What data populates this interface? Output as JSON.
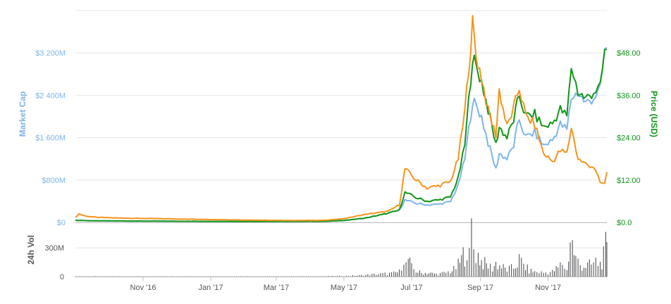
{
  "chart_data": {
    "type": "line",
    "x_axis": {
      "range": [
        "2016-09-01",
        "2017-12-24"
      ],
      "ticks": [
        {
          "date": "2016-11-01",
          "label": "Nov '16"
        },
        {
          "date": "2017-01-01",
          "label": "Jan '17"
        },
        {
          "date": "2017-03-01",
          "label": "Mar '17"
        },
        {
          "date": "2017-05-01",
          "label": "May '17"
        },
        {
          "date": "2017-07-01",
          "label": "Jul '17"
        },
        {
          "date": "2017-09-01",
          "label": "Sep '17"
        },
        {
          "date": "2017-11-01",
          "label": "Nov '17"
        }
      ]
    },
    "y_left": {
      "title": "Market Cap",
      "range": [
        0,
        4000
      ],
      "ticks": [
        {
          "value": 0,
          "label": "$0"
        },
        {
          "value": 800,
          "label": "$800M"
        },
        {
          "value": 1600,
          "label": "$1 600M"
        },
        {
          "value": 2400,
          "label": "$2 400M"
        },
        {
          "value": 3200,
          "label": "$3 200M"
        }
      ]
    },
    "y_right": {
      "title": "Price (USD)",
      "range": [
        0,
        60
      ],
      "ticks": [
        {
          "value": 0,
          "label": "$0.0"
        },
        {
          "value": 12,
          "label": "$12.00"
        },
        {
          "value": 24,
          "label": "$24.00"
        },
        {
          "value": 36,
          "label": "$36.00"
        },
        {
          "value": 48,
          "label": "$48.00"
        }
      ]
    },
    "volume_axis": {
      "title": "24h Vol",
      "range": [
        0,
        500
      ],
      "ticks": [
        {
          "value": 0,
          "label": "0"
        },
        {
          "value": 300,
          "label": "300M"
        }
      ]
    },
    "colors": {
      "market_cap": "#7cb5ec",
      "price_usd": "#109618",
      "price_btc": "#f7931a",
      "volume": "#434348"
    },
    "grid": true,
    "legend": "none",
    "series": [
      {
        "key": "market_cap",
        "axis": "left",
        "points": [
          [
            "2016-09-01",
            40
          ],
          [
            "2016-09-15",
            30
          ],
          [
            "2016-10-15",
            25
          ],
          [
            "2016-11-15",
            22
          ],
          [
            "2016-12-15",
            20
          ],
          [
            "2017-01-15",
            18
          ],
          [
            "2017-02-15",
            17
          ],
          [
            "2017-03-15",
            18
          ],
          [
            "2017-04-15",
            20
          ],
          [
            "2017-05-01",
            35
          ],
          [
            "2017-05-20",
            80
          ],
          [
            "2017-06-10",
            170
          ],
          [
            "2017-06-20",
            230
          ],
          [
            "2017-06-25",
            420
          ],
          [
            "2017-07-05",
            360
          ],
          [
            "2017-07-15",
            330
          ],
          [
            "2017-07-25",
            340
          ],
          [
            "2017-08-05",
            390
          ],
          [
            "2017-08-12",
            700
          ],
          [
            "2017-08-18",
            1200
          ],
          [
            "2017-08-25",
            2300
          ],
          [
            "2017-08-28",
            2200
          ],
          [
            "2017-09-02",
            2000
          ],
          [
            "2017-09-08",
            1500
          ],
          [
            "2017-09-15",
            1000
          ],
          [
            "2017-09-18",
            1300
          ],
          [
            "2017-09-25",
            1200
          ],
          [
            "2017-10-01",
            1450
          ],
          [
            "2017-10-06",
            1950
          ],
          [
            "2017-10-12",
            1600
          ],
          [
            "2017-10-20",
            1700
          ],
          [
            "2017-10-28",
            1450
          ],
          [
            "2017-11-05",
            1550
          ],
          [
            "2017-11-12",
            1850
          ],
          [
            "2017-11-18",
            1750
          ],
          [
            "2017-11-22",
            2350
          ],
          [
            "2017-11-28",
            2450
          ],
          [
            "2017-12-05",
            2250
          ],
          [
            "2017-12-12",
            2350
          ],
          [
            "2017-12-18",
            2500
          ],
          [
            "2017-12-22",
            3250
          ],
          [
            "2017-12-24",
            3300
          ]
        ]
      },
      {
        "key": "price_usd",
        "axis": "right",
        "points": [
          [
            "2016-09-01",
            0.6
          ],
          [
            "2016-09-15",
            0.45
          ],
          [
            "2016-10-15",
            0.4
          ],
          [
            "2016-11-15",
            0.35
          ],
          [
            "2016-12-15",
            0.3
          ],
          [
            "2017-01-15",
            0.28
          ],
          [
            "2017-02-15",
            0.27
          ],
          [
            "2017-03-15",
            0.28
          ],
          [
            "2017-04-15",
            0.3
          ],
          [
            "2017-05-01",
            0.55
          ],
          [
            "2017-05-20",
            1.2
          ],
          [
            "2017-06-10",
            2.6
          ],
          [
            "2017-06-20",
            3.5
          ],
          [
            "2017-06-25",
            8.5
          ],
          [
            "2017-07-05",
            7.0
          ],
          [
            "2017-07-15",
            6.0
          ],
          [
            "2017-07-25",
            6.3
          ],
          [
            "2017-08-05",
            7.2
          ],
          [
            "2017-08-12",
            12.5
          ],
          [
            "2017-08-18",
            22.0
          ],
          [
            "2017-08-25",
            47.0
          ],
          [
            "2017-08-28",
            44.0
          ],
          [
            "2017-09-02",
            40.0
          ],
          [
            "2017-09-08",
            32.0
          ],
          [
            "2017-09-15",
            22.0
          ],
          [
            "2017-09-18",
            27.0
          ],
          [
            "2017-09-25",
            24.0
          ],
          [
            "2017-10-01",
            29.0
          ],
          [
            "2017-10-06",
            36.0
          ],
          [
            "2017-10-12",
            30.0
          ],
          [
            "2017-10-20",
            30.5
          ],
          [
            "2017-10-28",
            27.0
          ],
          [
            "2017-11-05",
            28.0
          ],
          [
            "2017-11-12",
            32.0
          ],
          [
            "2017-11-18",
            30.0
          ],
          [
            "2017-11-22",
            44.0
          ],
          [
            "2017-11-28",
            37.0
          ],
          [
            "2017-12-05",
            35.0
          ],
          [
            "2017-12-12",
            37.0
          ],
          [
            "2017-12-18",
            38.0
          ],
          [
            "2017-12-22",
            48.5
          ],
          [
            "2017-12-24",
            49.0
          ]
        ]
      },
      {
        "key": "price_btc",
        "axis": "left",
        "points": [
          [
            "2016-09-01",
            90
          ],
          [
            "2016-09-04",
            160
          ],
          [
            "2016-09-10",
            120
          ],
          [
            "2016-09-20",
            95
          ],
          [
            "2016-10-15",
            80
          ],
          [
            "2016-11-15",
            70
          ],
          [
            "2016-12-15",
            60
          ],
          [
            "2017-01-15",
            50
          ],
          [
            "2017-02-15",
            40
          ],
          [
            "2017-03-15",
            35
          ],
          [
            "2017-04-15",
            40
          ],
          [
            "2017-05-01",
            70
          ],
          [
            "2017-05-20",
            150
          ],
          [
            "2017-06-10",
            210
          ],
          [
            "2017-06-20",
            330
          ],
          [
            "2017-06-25",
            1010
          ],
          [
            "2017-07-05",
            800
          ],
          [
            "2017-07-15",
            650
          ],
          [
            "2017-07-25",
            690
          ],
          [
            "2017-08-05",
            770
          ],
          [
            "2017-08-12",
            1200
          ],
          [
            "2017-08-18",
            2100
          ],
          [
            "2017-08-25",
            3750
          ],
          [
            "2017-08-28",
            3150
          ],
          [
            "2017-09-02",
            2750
          ],
          [
            "2017-09-08",
            2100
          ],
          [
            "2017-09-15",
            1650
          ],
          [
            "2017-09-18",
            2500
          ],
          [
            "2017-09-25",
            1800
          ],
          [
            "2017-10-01",
            2150
          ],
          [
            "2017-10-06",
            2550
          ],
          [
            "2017-10-12",
            2000
          ],
          [
            "2017-10-20",
            1850
          ],
          [
            "2017-10-28",
            1300
          ],
          [
            "2017-11-05",
            1150
          ],
          [
            "2017-11-12",
            1350
          ],
          [
            "2017-11-18",
            1300
          ],
          [
            "2017-11-22",
            1800
          ],
          [
            "2017-11-28",
            1200
          ],
          [
            "2017-12-05",
            1100
          ],
          [
            "2017-12-12",
            1050
          ],
          [
            "2017-12-18",
            750
          ],
          [
            "2017-12-22",
            720
          ],
          [
            "2017-12-24",
            950
          ]
        ]
      },
      {
        "key": "volume",
        "axis": "volume",
        "type": "bar",
        "points": [
          [
            "2016-09-01",
            3
          ],
          [
            "2016-10-01",
            2
          ],
          [
            "2016-11-01",
            2
          ],
          [
            "2016-12-01",
            2
          ],
          [
            "2017-01-01",
            2
          ],
          [
            "2017-02-01",
            2
          ],
          [
            "2017-03-01",
            2
          ],
          [
            "2017-04-01",
            3
          ],
          [
            "2017-05-01",
            6
          ],
          [
            "2017-05-15",
            12
          ],
          [
            "2017-06-01",
            25
          ],
          [
            "2017-06-15",
            35
          ],
          [
            "2017-06-20",
            50
          ],
          [
            "2017-06-24",
            250
          ],
          [
            "2017-06-26",
            120
          ],
          [
            "2017-06-28",
            180
          ],
          [
            "2017-07-01",
            90
          ],
          [
            "2017-07-05",
            60
          ],
          [
            "2017-07-10",
            35
          ],
          [
            "2017-07-15",
            40
          ],
          [
            "2017-07-20",
            30
          ],
          [
            "2017-07-25",
            25
          ],
          [
            "2017-08-01",
            40
          ],
          [
            "2017-08-05",
            55
          ],
          [
            "2017-08-08",
            70
          ],
          [
            "2017-08-12",
            120
          ],
          [
            "2017-08-15",
            180
          ],
          [
            "2017-08-18",
            260
          ],
          [
            "2017-08-20",
            340
          ],
          [
            "2017-08-22",
            200
          ],
          [
            "2017-08-24",
            480
          ],
          [
            "2017-08-26",
            300
          ],
          [
            "2017-08-28",
            250
          ],
          [
            "2017-08-30",
            220
          ],
          [
            "2017-09-02",
            160
          ],
          [
            "2017-09-05",
            130
          ],
          [
            "2017-09-08",
            110
          ],
          [
            "2017-09-12",
            90
          ],
          [
            "2017-09-15",
            140
          ],
          [
            "2017-09-20",
            100
          ],
          [
            "2017-09-25",
            70
          ],
          [
            "2017-10-01",
            90
          ],
          [
            "2017-10-06",
            170
          ],
          [
            "2017-10-10",
            120
          ],
          [
            "2017-10-15",
            60
          ],
          [
            "2017-10-20",
            50
          ],
          [
            "2017-10-28",
            40
          ],
          [
            "2017-11-05",
            50
          ],
          [
            "2017-11-10",
            90
          ],
          [
            "2017-11-14",
            140
          ],
          [
            "2017-11-18",
            60
          ],
          [
            "2017-11-21",
            400
          ],
          [
            "2017-11-23",
            330
          ],
          [
            "2017-11-26",
            180
          ],
          [
            "2017-11-30",
            120
          ],
          [
            "2017-12-05",
            110
          ],
          [
            "2017-12-10",
            120
          ],
          [
            "2017-12-14",
            150
          ],
          [
            "2017-12-18",
            130
          ],
          [
            "2017-12-21",
            200
          ],
          [
            "2017-12-23",
            300
          ],
          [
            "2017-12-24",
            360
          ]
        ]
      }
    ]
  }
}
